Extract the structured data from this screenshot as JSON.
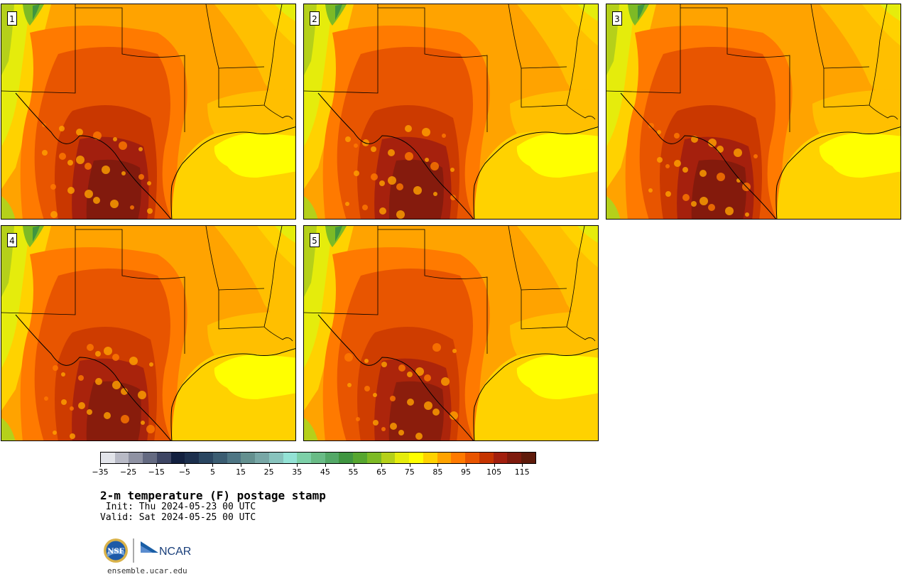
{
  "panels": [
    {
      "number": "1",
      "hot_core": 1.0
    },
    {
      "number": "2",
      "hot_core": 0.9
    },
    {
      "number": "3",
      "hot_core": 0.95
    },
    {
      "number": "4",
      "hot_core": 0.85
    },
    {
      "number": "5",
      "hot_core": 0.8
    }
  ],
  "colorbar": {
    "colors": [
      "#e2e4ea",
      "#b8bac6",
      "#8f92a3",
      "#646a81",
      "#3d4563",
      "#12203f",
      "#1c2f4d",
      "#2a4661",
      "#3b5d72",
      "#4e7684",
      "#64908f",
      "#78a7a6",
      "#88c3bd",
      "#93e2d5",
      "#7dd0a8",
      "#69bb86",
      "#53a867",
      "#3f9540",
      "#56a62f",
      "#7dba25",
      "#b5d01a",
      "#e5ec0c",
      "#ffff00",
      "#ffd200",
      "#ffa300",
      "#ff7a00",
      "#e85500",
      "#c53400",
      "#a21f0e",
      "#7e1a0d",
      "#5e1a0a"
    ],
    "tick_labels": [
      "−35",
      "−25",
      "−15",
      "−5",
      "5",
      "15",
      "25",
      "35",
      "45",
      "55",
      "65",
      "75",
      "85",
      "95",
      "105",
      "115"
    ]
  },
  "title": "2-m temperature (F) postage stamp",
  "init": " Init: Thu 2024-05-23 00 UTC",
  "valid": "Valid: Sat 2024-05-25 00 UTC",
  "logos": {
    "nsf": "NSF",
    "ncar": "NCAR"
  },
  "site": "ensemble.ucar.edu"
}
